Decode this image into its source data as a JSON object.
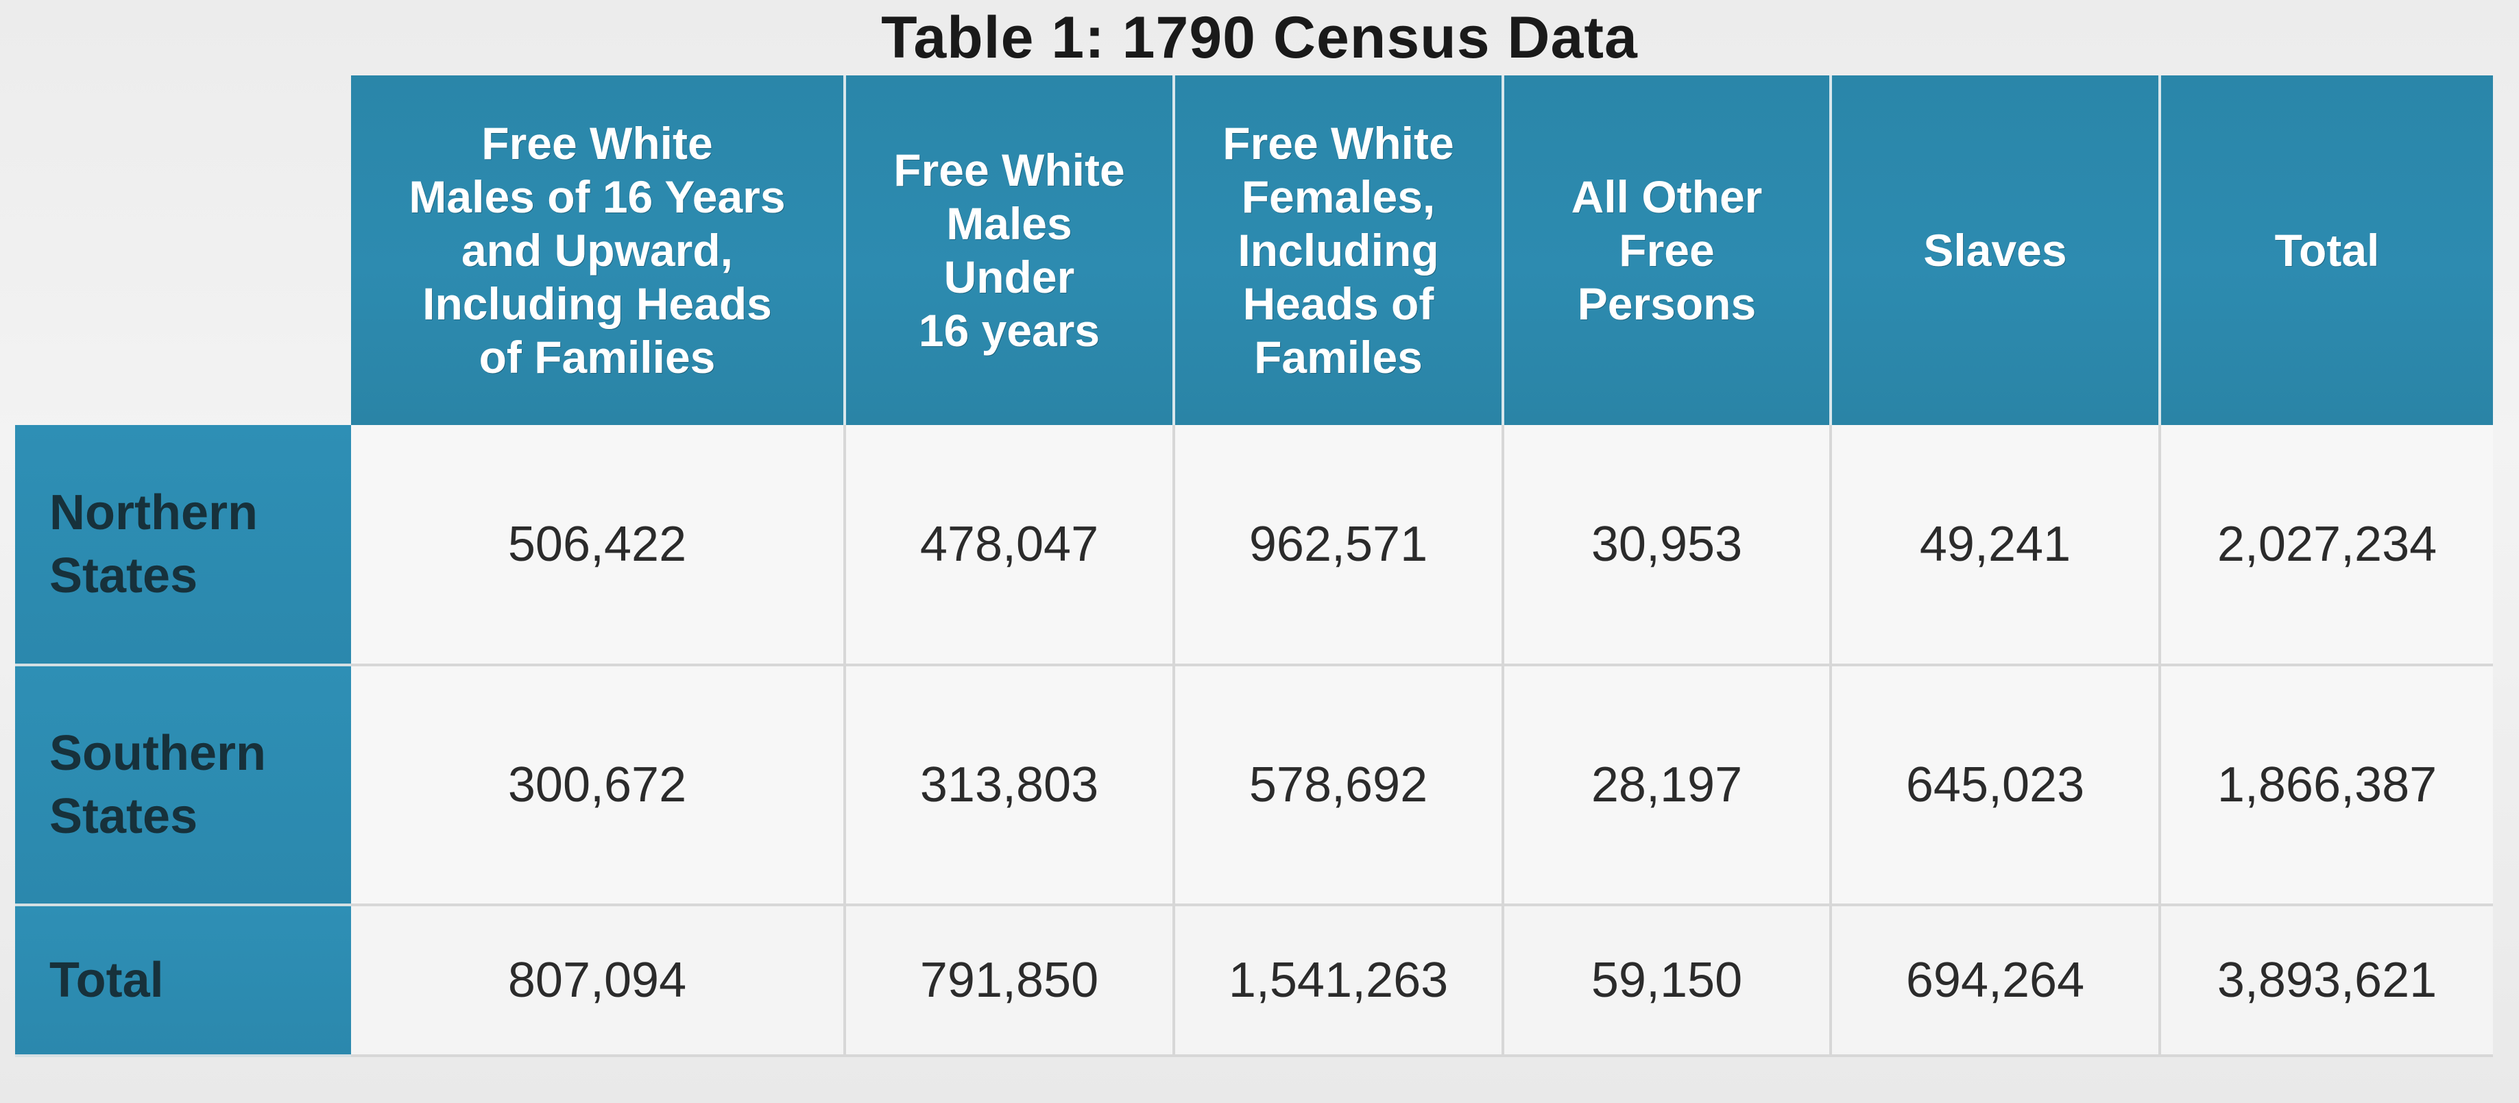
{
  "title": "Table 1: 1790 Census Data",
  "table": {
    "columns": [
      "Free White\nMales of 16 Years\nand Upward,\nIncluding Heads\nof Families",
      "Free White\nMales\nUnder\n16 years",
      "Free White\nFemales,\nIncluding\nHeads of\nFamiles",
      "All Other\nFree\nPersons",
      "Slaves",
      "Total"
    ],
    "rows": [
      {
        "label": "Northern\nStates",
        "values": [
          "506,422",
          "478,047",
          "962,571",
          "30,953",
          "49,241",
          "2,027,234"
        ]
      },
      {
        "label": "Southern\nStates",
        "values": [
          "300,672",
          "313,803",
          "578,692",
          "28,197",
          "645,023",
          "1,866,387"
        ]
      },
      {
        "label": "Total",
        "values": [
          "807,094",
          "791,850",
          "1,541,263",
          "59,150",
          "694,264",
          "3,893,621"
        ]
      }
    ]
  },
  "colors": {
    "header_teal": "#2d8bb0",
    "cell_background": "#f7f7f7"
  }
}
